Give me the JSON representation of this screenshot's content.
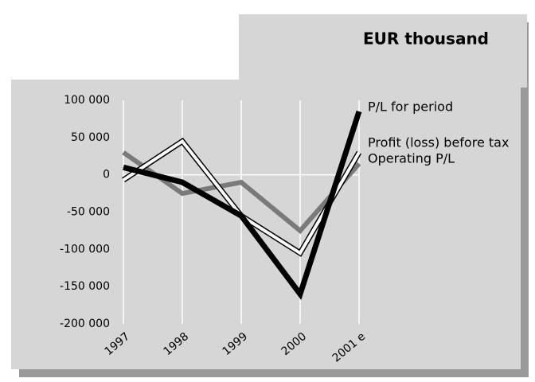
{
  "chart_data": {
    "type": "line",
    "title": "EUR thousand",
    "categories": [
      "1997",
      "1998",
      "1999",
      "2000",
      "2001 e"
    ],
    "series": [
      {
        "name": "P/L for period",
        "color": "#000000",
        "values": [
          10000,
          -10000,
          -55000,
          -160000,
          85000
        ]
      },
      {
        "name": "Profit (loss) before tax",
        "color": "#ffffff",
        "values": [
          -7000,
          45000,
          -55000,
          -105000,
          30000
        ]
      },
      {
        "name": "Operating P/L",
        "color": "#7a7a7a",
        "values": [
          30000,
          -25000,
          -10000,
          -75000,
          15000
        ]
      }
    ],
    "ylim": [
      -200000,
      100000
    ],
    "yticks": [
      {
        "value": 100000,
        "label": "100 000"
      },
      {
        "value": 50000,
        "label": "50 000"
      },
      0,
      {
        "value": -50000,
        "label": "-50 000"
      },
      {
        "value": -100000,
        "label": "-100 000"
      },
      {
        "value": -150000,
        "label": "-150 000"
      },
      {
        "value": -200000,
        "label": "-200 000"
      }
    ],
    "grid": "x"
  }
}
